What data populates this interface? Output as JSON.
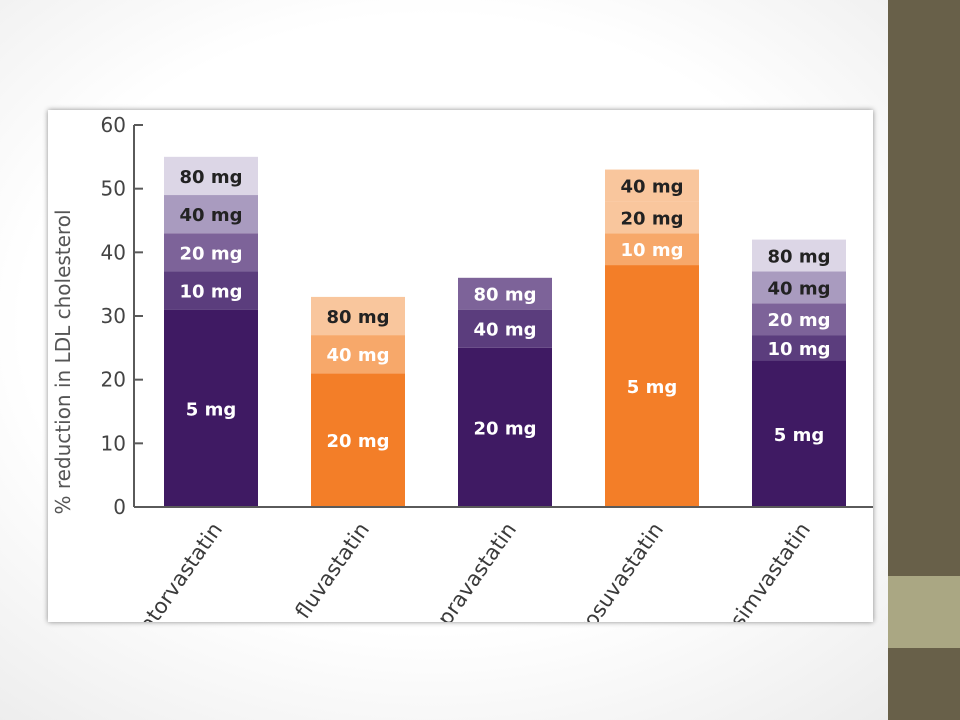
{
  "chart_data": {
    "type": "bar",
    "stacked": true,
    "ylabel": "% reduction in LDL cholesterol",
    "xlabel": "",
    "ylim": [
      0,
      60
    ],
    "yticks": [
      0,
      10,
      20,
      30,
      40,
      50,
      60
    ],
    "grid": false,
    "legend": "none",
    "colors": {
      "purple_base": "#3f1a63",
      "purple_dose_2": "#5b3d7d",
      "purple_dose_3": "#7d6399",
      "purple_dose_4": "#a99bbf",
      "purple_dose_5": "#dcd6e6",
      "orange_base": "#f37e28",
      "orange_dose_2": "#f7a86a",
      "orange_dose_3": "#f9c69d",
      "light_label_text": "#ffffff",
      "dark_label_text": "#222222"
    },
    "categories": [
      "atorvastatin",
      "fluvastatin",
      "pravastatin",
      "rosuvastatin",
      "simvastatin"
    ],
    "bars": [
      {
        "drug": "atorvastatin",
        "palette": "purple",
        "segments": [
          {
            "dose": "5 mg",
            "cumulative": 31
          },
          {
            "dose": "10 mg",
            "cumulative": 37
          },
          {
            "dose": "20 mg",
            "cumulative": 43
          },
          {
            "dose": "40 mg",
            "cumulative": 49
          },
          {
            "dose": "80 mg",
            "cumulative": 55
          }
        ]
      },
      {
        "drug": "fluvastatin",
        "palette": "orange",
        "segments": [
          {
            "dose": "20 mg",
            "cumulative": 21
          },
          {
            "dose": "40 mg",
            "cumulative": 27
          },
          {
            "dose": "80 mg",
            "cumulative": 33
          }
        ]
      },
      {
        "drug": "pravastatin",
        "palette": "purple",
        "segments": [
          {
            "dose": "20 mg",
            "cumulative": 25
          },
          {
            "dose": "40 mg",
            "cumulative": 31
          },
          {
            "dose": "80 mg",
            "cumulative": 36
          }
        ]
      },
      {
        "drug": "rosuvastatin",
        "palette": "orange",
        "segments": [
          {
            "dose": "5 mg",
            "cumulative": 38
          },
          {
            "dose": "10 mg",
            "cumulative": 43
          },
          {
            "dose": "20 mg",
            "cumulative": 48
          },
          {
            "dose": "40 mg",
            "cumulative": 53
          }
        ]
      },
      {
        "drug": "simvastatin",
        "palette": "purple",
        "segments": [
          {
            "dose": "5 mg",
            "cumulative": 23
          },
          {
            "dose": "10 mg",
            "cumulative": 27
          },
          {
            "dose": "20 mg",
            "cumulative": 32
          },
          {
            "dose": "40 mg",
            "cumulative": 37
          },
          {
            "dose": "80 mg",
            "cumulative": 42
          }
        ]
      }
    ]
  }
}
